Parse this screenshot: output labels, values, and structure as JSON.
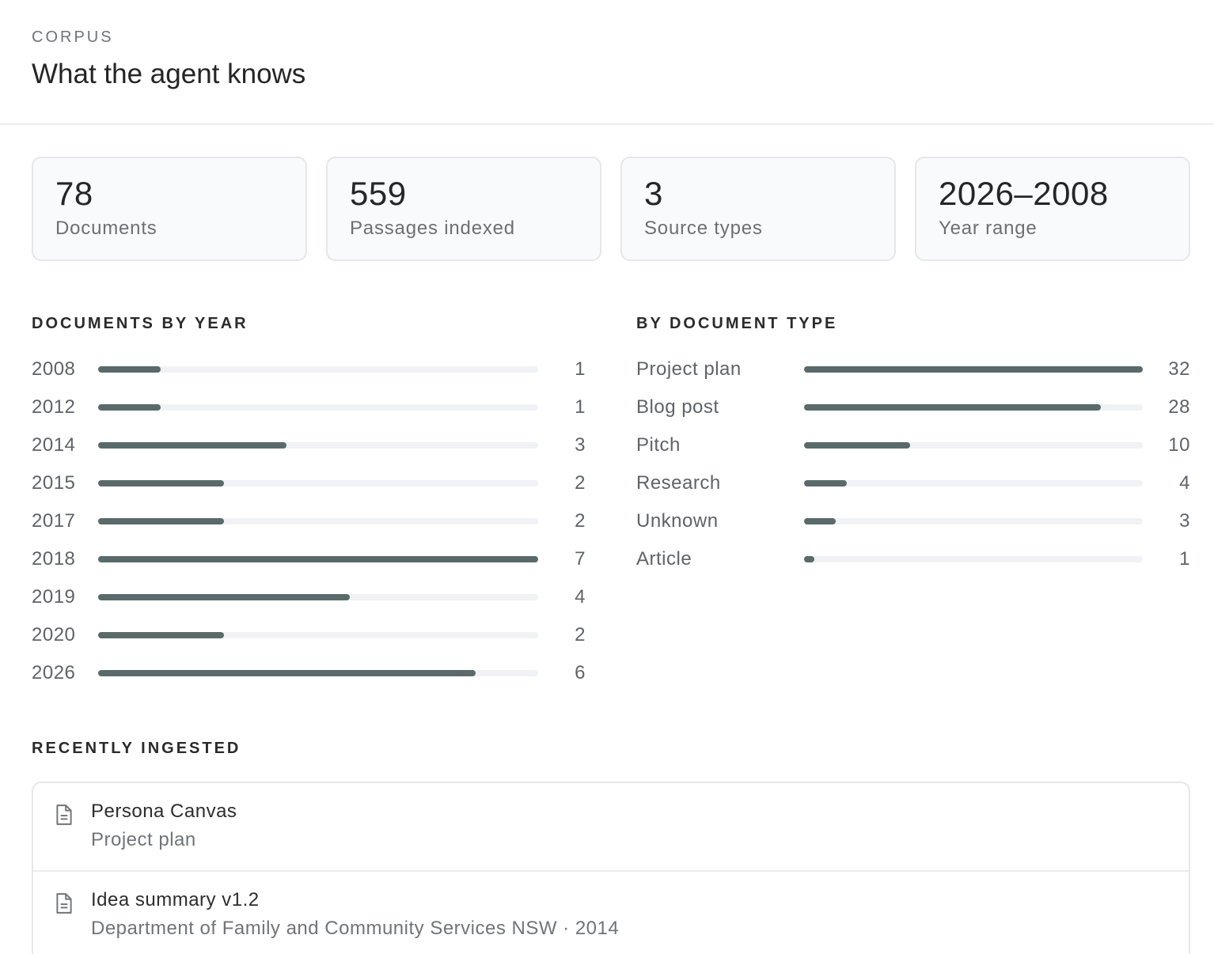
{
  "header": {
    "eyebrow": "CORPUS",
    "title": "What the agent knows"
  },
  "stats": [
    {
      "value": "78",
      "label": "Documents"
    },
    {
      "value": "559",
      "label": "Passages indexed"
    },
    {
      "value": "3",
      "label": "Source types"
    },
    {
      "value": "2026–2008",
      "label": "Year range"
    }
  ],
  "by_year": {
    "heading": "DOCUMENTS BY YEAR",
    "rows": [
      {
        "label": "2008",
        "count": "1"
      },
      {
        "label": "2012",
        "count": "1"
      },
      {
        "label": "2014",
        "count": "3"
      },
      {
        "label": "2015",
        "count": "2"
      },
      {
        "label": "2017",
        "count": "2"
      },
      {
        "label": "2018",
        "count": "7"
      },
      {
        "label": "2019",
        "count": "4"
      },
      {
        "label": "2020",
        "count": "2"
      },
      {
        "label": "2026",
        "count": "6"
      }
    ]
  },
  "by_type": {
    "heading": "BY DOCUMENT TYPE",
    "rows": [
      {
        "label": "Project plan",
        "count": "32"
      },
      {
        "label": "Blog post",
        "count": "28"
      },
      {
        "label": "Pitch",
        "count": "10"
      },
      {
        "label": "Research",
        "count": "4"
      },
      {
        "label": "Unknown",
        "count": "3"
      },
      {
        "label": "Article",
        "count": "1"
      }
    ]
  },
  "recent": {
    "heading": "RECENTLY INGESTED",
    "items": [
      {
        "title": "Persona Canvas",
        "subtitle": "Project plan",
        "icon": "document-icon"
      },
      {
        "title": "Idea summary v1.2",
        "subtitle": "Department of Family and Community Services NSW · 2014",
        "icon": "document-icon"
      }
    ]
  },
  "colors": {
    "bar_fill": "#5a6a6b",
    "bar_track": "#f1f2f5",
    "card_bg": "#f9fafb",
    "card_border": "#e6e7ea"
  }
}
